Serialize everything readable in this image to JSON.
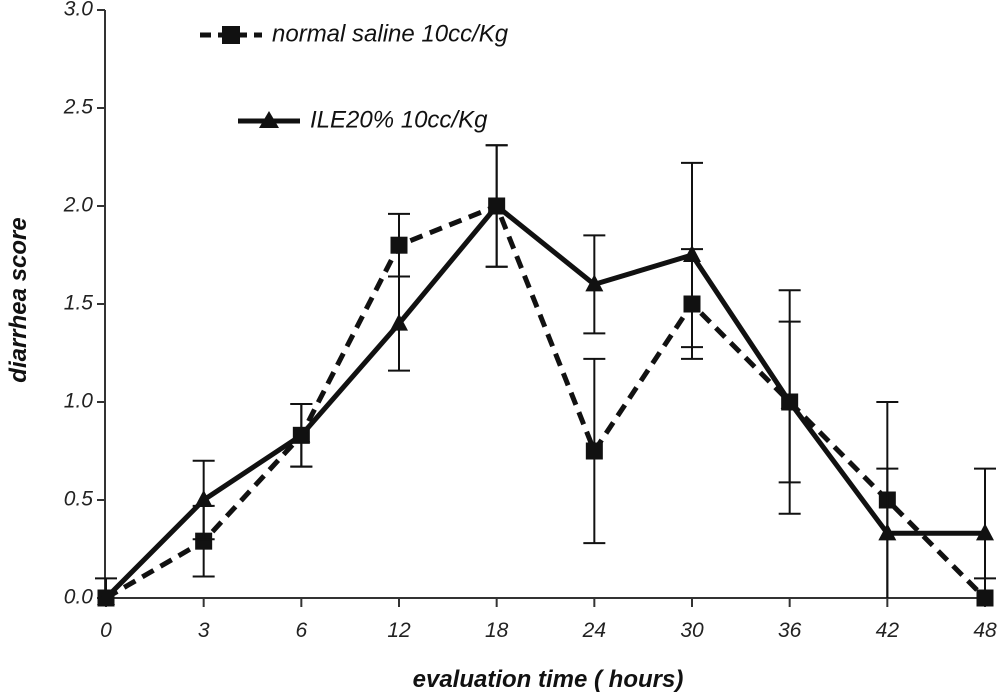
{
  "chart_data": {
    "type": "line",
    "xlabel": "evaluation time  ( hours)",
    "ylabel": "diarrhea score",
    "categories": [
      "0",
      "3",
      "6",
      "12",
      "18",
      "24",
      "30",
      "36",
      "42",
      "48"
    ],
    "ylim": [
      0,
      3
    ],
    "yticks": [
      "0.0",
      "0.5",
      "1.0",
      "1.5",
      "2.0",
      "2.5",
      "3.0"
    ],
    "grid": false,
    "legend_position": "top-left",
    "series": [
      {
        "name": "normal saline 10cc/Kg",
        "style": "dashed",
        "marker": "square",
        "values": [
          0.0,
          0.29,
          0.83,
          1.8,
          2.0,
          0.75,
          1.5,
          1.0,
          0.5,
          0.0
        ],
        "errors": [
          0.0,
          0.18,
          0.16,
          0.16,
          0.31,
          0.47,
          0.28,
          0.57,
          0.5,
          0.1
        ]
      },
      {
        "name": "ILE20% 10cc/Kg",
        "style": "solid",
        "marker": "triangle",
        "values": [
          0.0,
          0.5,
          0.83,
          1.4,
          2.0,
          1.6,
          1.75,
          1.0,
          0.33,
          0.33
        ],
        "errors": [
          0.1,
          0.2,
          0.16,
          0.24,
          0.31,
          0.25,
          0.47,
          0.41,
          0.33,
          0.33
        ]
      }
    ],
    "colors": {
      "line": "#111111"
    }
  }
}
